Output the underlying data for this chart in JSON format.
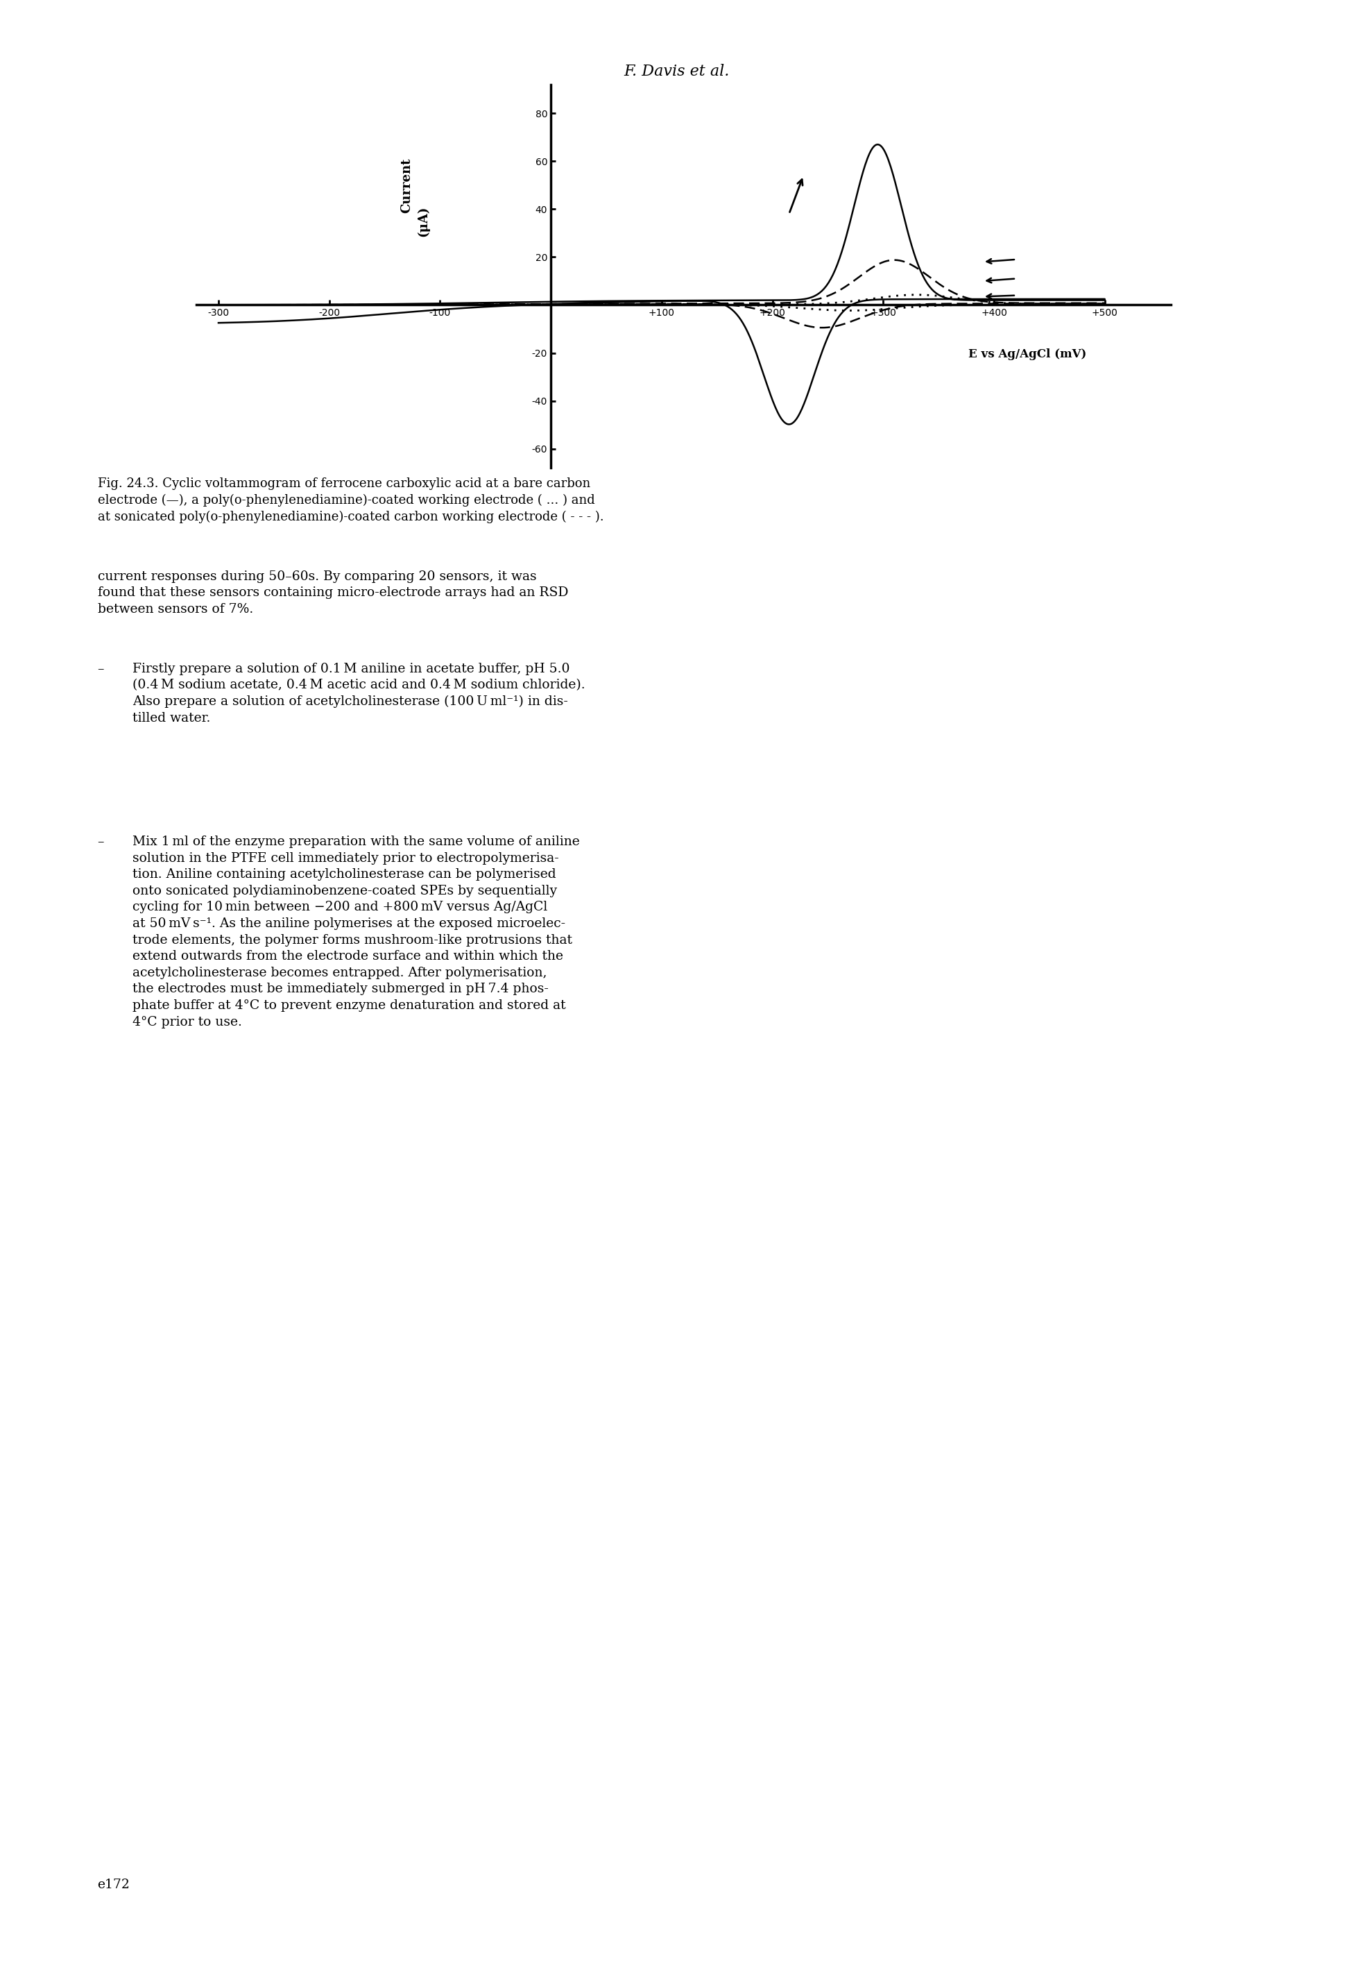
{
  "title": "F. Davis et al.",
  "xlabel": "E vs Ag/AgCl (mV)",
  "ylabel_line1": "Current",
  "ylabel_line2": "(μA)",
  "xlim": [
    -320,
    560
  ],
  "ylim": [
    -68,
    92
  ],
  "xticks": [
    -300,
    -200,
    -100,
    100,
    200,
    300,
    400,
    500
  ],
  "xtick_labels": [
    "-300",
    "-200",
    "-100",
    "+100",
    "+200",
    "+300",
    "+400",
    "+500"
  ],
  "yticks": [
    -60,
    -40,
    -20,
    20,
    40,
    60,
    80
  ],
  "ytick_labels": [
    "-60",
    "-40",
    "-20",
    "20",
    "40",
    "60",
    "80"
  ],
  "background_color": "#ffffff",
  "fig_caption_line1": "Fig. 24.3. Cyclic voltammogram of ferrocene carboxylic acid at a bare carbon",
  "fig_caption_line2": "electrode (—), a poly(o-phenylenediamine)-coated working electrode ( ... ) and",
  "fig_caption_line3": "at sonicated poly(o-phenylenediamine)-coated carbon working electrode ( - - - ).",
  "body_text_1": "current responses during 50–60s. By comparing 20 sensors, it was\nfound that these sensors containing micro-electrode arrays had an RSD\nbetween sensors of 7%.",
  "bullet1_text": "Firstly prepare a solution of 0.1 M aniline in acetate buffer, pH 5.0\n(0.4 M sodium acetate, 0.4 M acetic acid and 0.4 M sodium chloride).\nAlso prepare a solution of acetylcholinesterase (100 U ml⁻¹) in dis-\ntilled water.",
  "bullet2_text": "Mix 1 ml of the enzyme preparation with the same volume of aniline\nsolution in the PTFE cell immediately prior to electropolymerisa-\ntion. Aniline containing acetylcholinesterase can be polymerised\nonto sonicated polydiaminobenzene-coated SPEs by sequentially\ncycling for 10 min between −200 and +800 mV versus Ag/AgCl\nat 50 mV s⁻¹. As the aniline polymerises at the exposed microelec-\ntrode elements, the polymer forms mushroom-like protrusions that\nextend outwards from the electrode surface and within which the\nacetylcholinesterase becomes entrapped. After polymerisation,\nthe electrodes must be immediately submerged in pH 7.4 phos-\nphate buffer at 4°C to prevent enzyme denaturation and stored at\n4°C prior to use.",
  "page_number": "e172"
}
